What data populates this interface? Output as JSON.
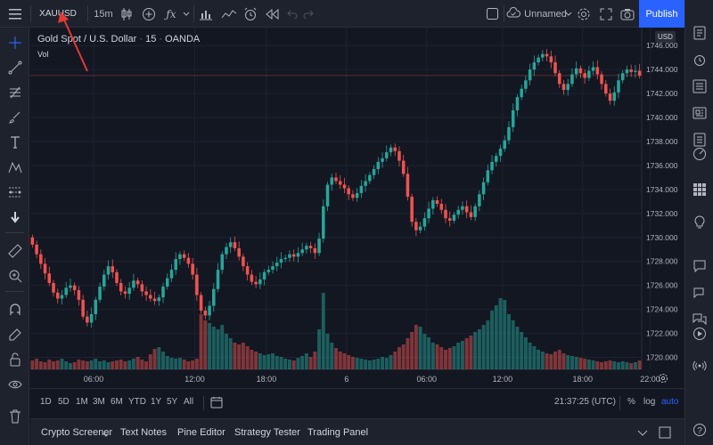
{
  "toolbar": {
    "symbol": "XAUUSD",
    "interval": "15m",
    "layout_name": "Unnamed",
    "publish_label": "Publish"
  },
  "legend": {
    "title": "Gold Spot / U.S. Dollar",
    "interval": "15",
    "source": "OANDA",
    "volume_label": "Vol"
  },
  "price_axis": {
    "currency": "USD",
    "ticks": [
      "1746.000",
      "1744.000",
      "1742.000",
      "1740.000",
      "1738.000",
      "1736.000",
      "1734.000",
      "1732.000",
      "1730.000",
      "1728.000",
      "1726.000",
      "1724.000",
      "1722.000",
      "1720.000"
    ]
  },
  "time_axis": {
    "ticks": [
      "06:00",
      "12:00",
      "18:00",
      "6",
      "06:00",
      "12:00",
      "18:00",
      "22:00"
    ]
  },
  "range_buttons": [
    "1D",
    "5D",
    "1M",
    "3M",
    "6M",
    "YTD",
    "1Y",
    "5Y",
    "All"
  ],
  "clock": "21:37:25 (UTC)",
  "scale_options": {
    "percent": "%",
    "log": "log",
    "auto": "auto"
  },
  "footer_tabs": [
    "Crypto Screener",
    "Text Notes",
    "Pine Editor",
    "Strategy Tester",
    "Trading Panel"
  ],
  "colors": {
    "up": "#26a69a",
    "down": "#ef5350",
    "background": "#131722",
    "accent": "#2962ff"
  },
  "annotation": {
    "type": "arrow",
    "color": "#e53935",
    "points_to": "symbol"
  },
  "chart_data": {
    "type": "candlestick",
    "series_name": "XAUUSD",
    "ylim": [
      1719,
      1747.5
    ],
    "current_price_line": 1743.5,
    "close": [
      1729.4,
      1728.6,
      1727.8,
      1727.0,
      1726.2,
      1725.4,
      1724.9,
      1725.2,
      1725.8,
      1726.0,
      1725.6,
      1724.8,
      1723.4,
      1722.9,
      1723.6,
      1724.8,
      1725.9,
      1726.9,
      1727.6,
      1727.1,
      1726.2,
      1725.5,
      1725.3,
      1725.8,
      1726.4,
      1726.1,
      1725.5,
      1725.2,
      1724.9,
      1724.7,
      1725.0,
      1725.9,
      1726.6,
      1727.3,
      1728.2,
      1728.6,
      1728.3,
      1727.8,
      1726.9,
      1725.2,
      1723.9,
      1723.5,
      1724.3,
      1725.7,
      1727.3,
      1728.6,
      1729.2,
      1729.6,
      1729.1,
      1728.4,
      1727.6,
      1726.9,
      1726.3,
      1726.1,
      1726.5,
      1727.1,
      1727.3,
      1727.6,
      1727.9,
      1728.2,
      1728.3,
      1728.6,
      1728.4,
      1728.7,
      1729.0,
      1729.3,
      1729.1,
      1728.7,
      1729.9,
      1732.6,
      1734.4,
      1735.0,
      1734.7,
      1734.4,
      1734.1,
      1733.6,
      1733.3,
      1733.7,
      1734.3,
      1734.7,
      1735.2,
      1735.7,
      1736.3,
      1736.6,
      1737.1,
      1737.5,
      1737.2,
      1736.4,
      1735.3,
      1733.4,
      1731.3,
      1730.6,
      1730.9,
      1731.6,
      1732.4,
      1733.1,
      1732.8,
      1732.3,
      1731.6,
      1731.4,
      1731.9,
      1732.3,
      1732.6,
      1732.1,
      1731.7,
      1732.6,
      1733.6,
      1734.6,
      1735.6,
      1736.3,
      1736.8,
      1737.4,
      1738.1,
      1739.2,
      1740.6,
      1741.7,
      1742.4,
      1743.1,
      1744.0,
      1744.6,
      1745.0,
      1745.3,
      1745.1,
      1744.6,
      1743.7,
      1742.8,
      1742.3,
      1742.8,
      1743.6,
      1744.1,
      1743.7,
      1743.3,
      1743.9,
      1744.2,
      1743.6,
      1742.8,
      1742.0,
      1741.4,
      1742.1,
      1743.1,
      1743.7,
      1744.0,
      1743.8,
      1743.9,
      1743.5
    ],
    "volume_scale_note": "relative volume, 0 to 1",
    "volume": [
      0.1,
      0.12,
      0.09,
      0.08,
      0.11,
      0.09,
      0.1,
      0.12,
      0.09,
      0.07,
      0.08,
      0.11,
      0.1,
      0.09,
      0.1,
      0.12,
      0.09,
      0.1,
      0.08,
      0.09,
      0.1,
      0.11,
      0.09,
      0.1,
      0.12,
      0.14,
      0.11,
      0.09,
      0.17,
      0.23,
      0.25,
      0.2,
      0.15,
      0.13,
      0.12,
      0.13,
      0.11,
      0.09,
      0.1,
      0.12,
      0.62,
      0.55,
      0.52,
      0.48,
      0.45,
      0.5,
      0.4,
      0.35,
      0.3,
      0.28,
      0.3,
      0.26,
      0.22,
      0.2,
      0.18,
      0.16,
      0.17,
      0.18,
      0.15,
      0.14,
      0.12,
      0.11,
      0.1,
      0.13,
      0.15,
      0.18,
      0.14,
      0.2,
      0.45,
      0.86,
      0.4,
      0.3,
      0.24,
      0.2,
      0.18,
      0.16,
      0.14,
      0.13,
      0.12,
      0.11,
      0.1,
      0.11,
      0.12,
      0.14,
      0.13,
      0.16,
      0.2,
      0.25,
      0.28,
      0.35,
      0.42,
      0.5,
      0.48,
      0.4,
      0.36,
      0.3,
      0.28,
      0.25,
      0.22,
      0.24,
      0.26,
      0.3,
      0.32,
      0.35,
      0.38,
      0.42,
      0.45,
      0.5,
      0.55,
      0.66,
      0.72,
      0.8,
      0.78,
      0.62,
      0.55,
      0.48,
      0.42,
      0.36,
      0.3,
      0.26,
      0.22,
      0.2,
      0.18,
      0.17,
      0.2,
      0.22,
      0.18,
      0.16,
      0.15,
      0.14,
      0.13,
      0.12,
      0.11,
      0.1,
      0.09,
      0.08,
      0.09,
      0.1,
      0.09,
      0.08,
      0.09,
      0.08,
      0.07,
      0.08,
      0.1
    ]
  }
}
